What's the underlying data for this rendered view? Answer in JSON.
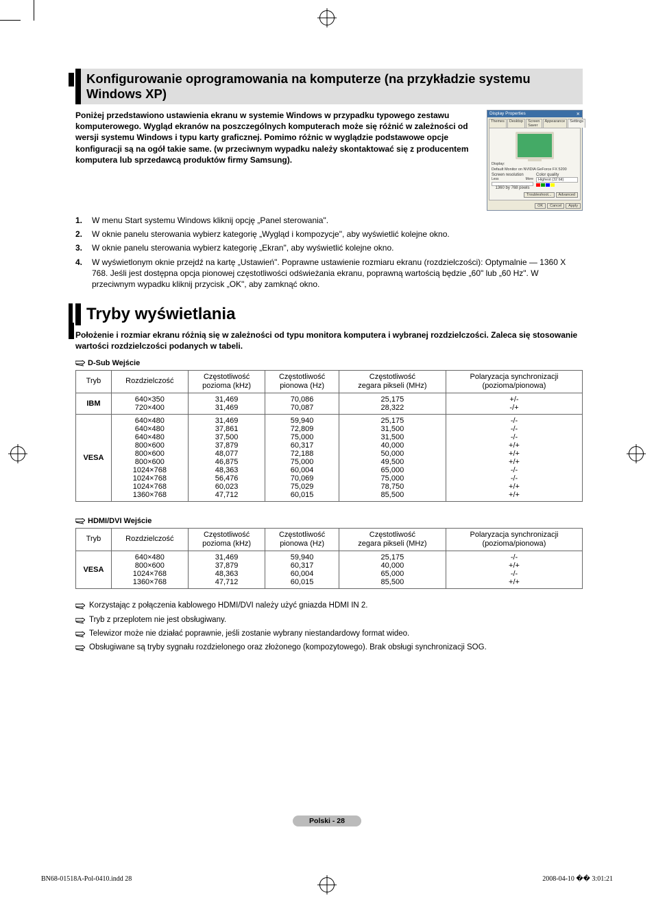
{
  "section1": {
    "title": "Konfigurowanie oprogramowania na komputerze (na przykładzie systemu Windows XP)",
    "intro": "Poniżej przedstawiono ustawienia ekranu w systemie Windows w przypadku typowego zestawu komputerowego. Wygląd ekranów na poszczególnych komputerach może się różnić w zależności od wersji systemu Windows i typu karty graficznej. Pomimo różnic w wyglądzie podstawowe opcje konfiguracji są na ogół takie same. (w przeciwnym wypadku należy skontaktować się z producentem komputera lub sprzedawcą produktów firmy Samsung).",
    "steps": [
      "W menu Start systemu Windows kliknij opcję „Panel sterowania\".",
      "W oknie panelu sterowania wybierz kategorię „Wygląd i kompozycje\", aby wyświetlić kolejne okno.",
      "W oknie panelu sterowania wybierz kategorię „Ekran\", aby wyświetlić kolejne okno.",
      "W wyświetlonym oknie przejdź na kartę „Ustawień\". Poprawne ustawienie rozmiaru ekranu (rozdzielczości): Optymalnie — 1360 X 768. Jeśli jest dostępna opcja pionowej częstotliwości odświeżania ekranu, poprawną wartością będzie „60\" lub „60 Hz\". W przeciwnym wypadku kliknij przycisk „OK\", aby zamknąć okno."
    ]
  },
  "displayDialog": {
    "title": "Display Properties",
    "tabs": [
      "Themes",
      "Desktop",
      "Screen Saver",
      "Appearance",
      "Settings"
    ],
    "displayLabel": "Display:",
    "displayValue": "Default Monitor on NVIDIA GeForce FX 5200",
    "resLabel": "Screen resolution",
    "resLess": "Less",
    "resMore": "More",
    "resValue": "1360 by 768 pixels",
    "colorLabel": "Color quality",
    "colorValue": "Highest (32 bit)",
    "troubleshoot": "Troubleshoot...",
    "advanced": "Advanced",
    "ok": "OK",
    "cancel": "Cancel",
    "apply": "Apply",
    "barColors": [
      "#ff0000",
      "#00a000",
      "#0000ff",
      "#ffff00"
    ]
  },
  "section2": {
    "title": "Tryby wyświetlania",
    "intro": "Położenie i rozmiar ekranu różnią się w zależności od typu monitora komputera i wybranej rozdzielczości. Zaleca się stosowanie wartości rozdzielczości podanych w tabeli."
  },
  "tableHeaders": {
    "mode": "Tryb",
    "resolution": "Rozdzielczość",
    "hfreq": "Częstotliwość\npozioma (kHz)",
    "vfreq": "Częstotliwość\npionowa (Hz)",
    "pclock": "Częstotliwość\nzegara pikseli (MHz)",
    "sync": "Polaryzacja synchronizacji\n(pozioma/pionowa)"
  },
  "dsub": {
    "label": "D-Sub Wejście",
    "groups": [
      {
        "mode": "IBM",
        "rows": [
          {
            "res": "640×350",
            "h": "31,469",
            "v": "70,086",
            "p": "25,175",
            "s": "+/-"
          },
          {
            "res": "720×400",
            "h": "31,469",
            "v": "70,087",
            "p": "28,322",
            "s": "-/+"
          }
        ]
      },
      {
        "mode": "VESA",
        "rows": [
          {
            "res": "640×480",
            "h": "31,469",
            "v": "59,940",
            "p": "25,175",
            "s": "-/-"
          },
          {
            "res": "640×480",
            "h": "37,861",
            "v": "72,809",
            "p": "31,500",
            "s": "-/-"
          },
          {
            "res": "640×480",
            "h": "37,500",
            "v": "75,000",
            "p": "31,500",
            "s": "-/-"
          },
          {
            "res": "800×600",
            "h": "37,879",
            "v": "60,317",
            "p": "40,000",
            "s": "+/+"
          },
          {
            "res": "800×600",
            "h": "48,077",
            "v": "72,188",
            "p": "50,000",
            "s": "+/+"
          },
          {
            "res": "800×600",
            "h": "46,875",
            "v": "75,000",
            "p": "49,500",
            "s": "+/+"
          },
          {
            "res": "1024×768",
            "h": "48,363",
            "v": "60,004",
            "p": "65,000",
            "s": "-/-"
          },
          {
            "res": "1024×768",
            "h": "56,476",
            "v": "70,069",
            "p": "75,000",
            "s": "-/-"
          },
          {
            "res": "1024×768",
            "h": "60,023",
            "v": "75,029",
            "p": "78,750",
            "s": "+/+"
          },
          {
            "res": "1360×768",
            "h": "47,712",
            "v": "60,015",
            "p": "85,500",
            "s": "+/+"
          }
        ]
      }
    ]
  },
  "hdmi": {
    "label": "HDMI/DVI Wejście",
    "groups": [
      {
        "mode": "VESA",
        "rows": [
          {
            "res": "640×480",
            "h": "31,469",
            "v": "59,940",
            "p": "25,175",
            "s": "-/-"
          },
          {
            "res": "800×600",
            "h": "37,879",
            "v": "60,317",
            "p": "40,000",
            "s": "+/+"
          },
          {
            "res": "1024×768",
            "h": "48,363",
            "v": "60,004",
            "p": "65,000",
            "s": "-/-"
          },
          {
            "res": "1360×768",
            "h": "47,712",
            "v": "60,015",
            "p": "85,500",
            "s": "+/+"
          }
        ]
      }
    ]
  },
  "notes": [
    "Korzystając z połączenia kablowego HDMI/DVI należy użyć gniazda HDMI IN 2.",
    "Tryb z przeplotem nie jest obsługiwany.",
    "Telewizor może nie działać poprawnie, jeśli zostanie wybrany niestandardowy format wideo.",
    "Obsługiwane są tryby sygnału rozdzielonego oraz złożonego (kompozytowego). Brak obsługi synchronizacji SOG."
  ],
  "pageBadge": "Polski - 28",
  "footer": {
    "file": "BN68-01518A-Pol-0410.indd   28",
    "date": "2008-04-10   �� 3:01:21"
  },
  "colors": {
    "headerBg": "#dedede",
    "accent": "#000000",
    "tableBorder": "#666666",
    "badgeBg": "#bbbbbb"
  }
}
